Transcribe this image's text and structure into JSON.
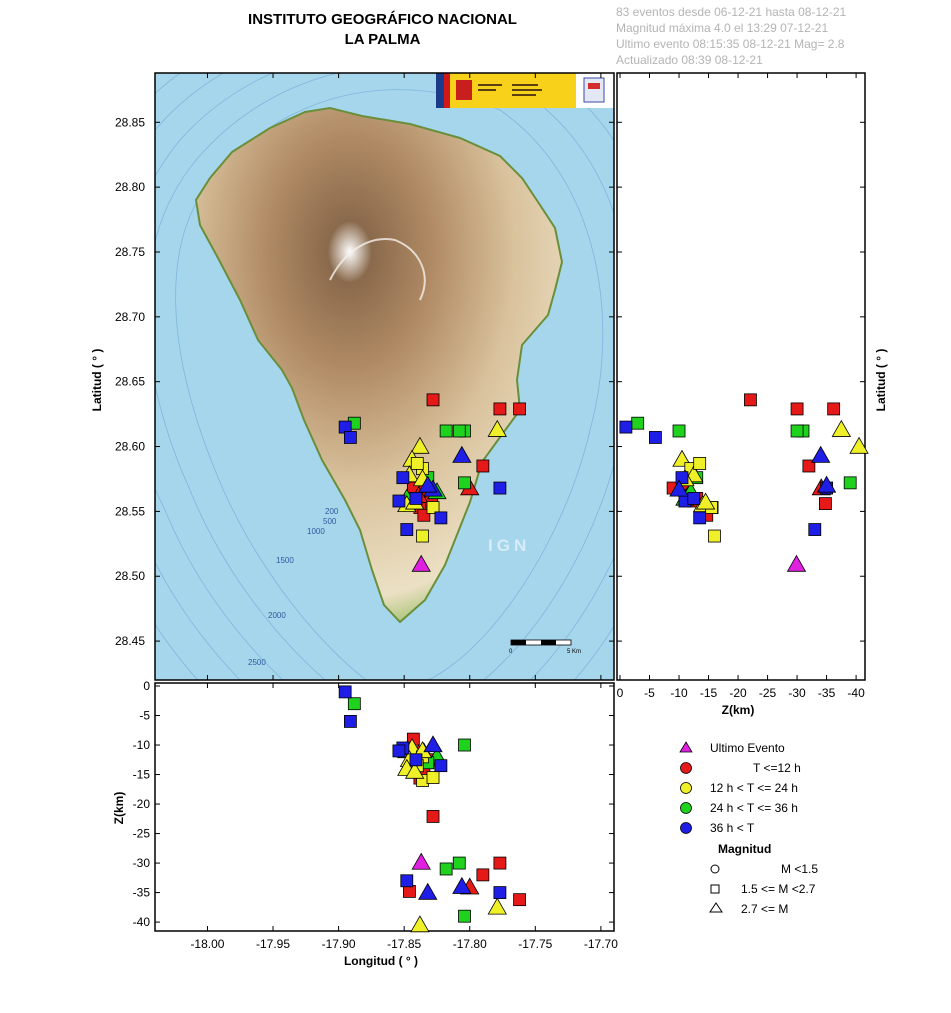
{
  "header": {
    "title": "INSTITUTO GEOGRÁFICO NACIONAL",
    "subtitle": "LA PALMA",
    "info_lines": [
      "83 eventos desde 06-12-21 hasta 08-12-21",
      "Magnitud máxima 4.0 el 13:29 07-12-21",
      "Ultimo evento   08:15:35 08-12-21  Mag= 2.8",
      "Actualizado  08:39  08-12-21"
    ]
  },
  "map": {
    "watermark": "IGN",
    "bathymetry_labels": [
      "200",
      "500",
      "1000",
      "1500",
      "2000",
      "2500"
    ],
    "scale_labels": [
      "0",
      "5 Km"
    ],
    "colors": {
      "sea": "#a6d6ec",
      "land_low": "#e8d8b4",
      "land_high": "#a07a58"
    }
  },
  "chart_data": {
    "type": "scatter",
    "axes": {
      "map_y_label": "Latitud ( ° )",
      "depth_x_label": "Z(km)",
      "depth_y_label": "Z(km)",
      "lon_label": "Longitud ( ° )",
      "lat_ticks": [
        "28.85",
        "28.80",
        "28.75",
        "28.70",
        "28.65",
        "28.60",
        "28.55",
        "28.50",
        "28.45"
      ],
      "lat_values": [
        28.85,
        28.8,
        28.75,
        28.7,
        28.65,
        28.6,
        28.55,
        28.5,
        28.45
      ],
      "lon_ticks": [
        "-18.00",
        "-17.95",
        "-17.90",
        "-17.85",
        "-17.80",
        "-17.75",
        "-17.70"
      ],
      "lon_values": [
        -18.0,
        -17.95,
        -17.9,
        -17.85,
        -17.8,
        -17.75,
        -17.7
      ],
      "depth_ticks_right": [
        "0",
        "-5",
        "-10",
        "-15",
        "-20",
        "-25",
        "-30",
        "-35",
        "-40"
      ],
      "depth_ticks_bottom": [
        "0",
        "-5",
        "-10",
        "-15",
        "-20",
        "-25",
        "-30",
        "-35",
        "-40"
      ],
      "depth_values": [
        0,
        5,
        10,
        15,
        20,
        25,
        30,
        35,
        40
      ],
      "lon_range": [
        -18.04,
        -17.69
      ],
      "lat_range": [
        28.42,
        28.888
      ],
      "depth_range": [
        0,
        41
      ]
    },
    "legend": {
      "items": [
        {
          "label": "Ultimo Evento",
          "color": "#e020e0",
          "shape": "triangle"
        },
        {
          "label": "T <=12 h",
          "color": "#e61919",
          "shape": "circle"
        },
        {
          "label": "12 h  < T <= 24 h",
          "color": "#f0f028",
          "shape": "circle"
        },
        {
          "label": "24 h  < T <= 36 h",
          "color": "#1ed21e",
          "shape": "circle"
        },
        {
          "label": "36 h <  T",
          "color": "#1e1ee6",
          "shape": "circle"
        }
      ],
      "magnitude_title": "Magnitud",
      "magnitude_items": [
        {
          "label": "M <1.5",
          "shape": "circle"
        },
        {
          "label": "1.5 <= M <2.7",
          "shape": "square"
        },
        {
          "label": "2.7 <= M",
          "shape": "triangle"
        }
      ]
    },
    "events": [
      {
        "lon": -17.837,
        "lat": 28.509,
        "z": 29.9,
        "color": "magenta",
        "shape": "triangle"
      },
      {
        "lon": -17.828,
        "lat": 28.636,
        "z": 22.1,
        "color": "red",
        "shape": "square"
      },
      {
        "lon": -17.777,
        "lat": 28.629,
        "z": 30.0,
        "color": "red",
        "shape": "square"
      },
      {
        "lon": -17.762,
        "lat": 28.629,
        "z": 36.2,
        "color": "red",
        "shape": "square"
      },
      {
        "lon": -17.79,
        "lat": 28.585,
        "z": 32.0,
        "color": "red",
        "shape": "square"
      },
      {
        "lon": -17.8,
        "lat": 28.568,
        "z": 34.1,
        "color": "red",
        "shape": "triangle"
      },
      {
        "lon": -17.835,
        "lat": 28.568,
        "z": 11.2,
        "color": "red",
        "shape": "triangle"
      },
      {
        "lon": -17.832,
        "lat": 28.56,
        "z": 13.0,
        "color": "red",
        "shape": "square"
      },
      {
        "lon": -17.838,
        "lat": 28.553,
        "z": 15.6,
        "color": "red",
        "shape": "square"
      },
      {
        "lon": -17.829,
        "lat": 28.558,
        "z": 12.5,
        "color": "red",
        "shape": "square"
      },
      {
        "lon": -17.843,
        "lat": 28.568,
        "z": 9.0,
        "color": "red",
        "shape": "square"
      },
      {
        "lon": -17.835,
        "lat": 28.547,
        "z": 14.7,
        "color": "red",
        "shape": "square"
      },
      {
        "lon": -17.839,
        "lat": 28.562,
        "z": 11.5,
        "color": "red",
        "shape": "triangle"
      },
      {
        "lon": -17.846,
        "lat": 28.556,
        "z": 34.8,
        "color": "red",
        "shape": "square"
      },
      {
        "lon": -17.818,
        "lat": 28.612,
        "z": 31.0,
        "color": "green",
        "shape": "square"
      },
      {
        "lon": -17.804,
        "lat": 28.612,
        "z": 10.0,
        "color": "green",
        "shape": "square"
      },
      {
        "lon": -17.808,
        "lat": 28.612,
        "z": 30.0,
        "color": "green",
        "shape": "square"
      },
      {
        "lon": -17.804,
        "lat": 28.572,
        "z": 39.0,
        "color": "green",
        "shape": "square"
      },
      {
        "lon": -17.888,
        "lat": 28.618,
        "z": 3.0,
        "color": "green",
        "shape": "square"
      },
      {
        "lon": -17.848,
        "lat": 28.56,
        "z": 11.0,
        "color": "green",
        "shape": "triangle"
      },
      {
        "lon": -17.825,
        "lat": 28.565,
        "z": 12.0,
        "color": "green",
        "shape": "triangle"
      },
      {
        "lon": -17.832,
        "lat": 28.576,
        "z": 13.0,
        "color": "green",
        "shape": "square"
      },
      {
        "lon": -17.779,
        "lat": 28.613,
        "z": 37.5,
        "color": "yellow",
        "shape": "triangle"
      },
      {
        "lon": -17.838,
        "lat": 28.6,
        "z": 40.5,
        "color": "yellow",
        "shape": "triangle"
      },
      {
        "lon": -17.844,
        "lat": 28.59,
        "z": 10.5,
        "color": "yellow",
        "shape": "triangle"
      },
      {
        "lon": -17.836,
        "lat": 28.583,
        "z": 12.0,
        "color": "yellow",
        "shape": "square"
      },
      {
        "lon": -17.846,
        "lat": 28.578,
        "z": 12.5,
        "color": "yellow",
        "shape": "triangle"
      },
      {
        "lon": -17.836,
        "lat": 28.575,
        "z": 11.0,
        "color": "yellow",
        "shape": "triangle"
      },
      {
        "lon": -17.848,
        "lat": 28.555,
        "z": 14.0,
        "color": "yellow",
        "shape": "triangle"
      },
      {
        "lon": -17.836,
        "lat": 28.531,
        "z": 16.0,
        "color": "yellow",
        "shape": "square"
      },
      {
        "lon": -17.828,
        "lat": 28.553,
        "z": 15.5,
        "color": "yellow",
        "shape": "square"
      },
      {
        "lon": -17.84,
        "lat": 28.587,
        "z": 13.5,
        "color": "yellow",
        "shape": "square"
      },
      {
        "lon": -17.842,
        "lat": 28.557,
        "z": 14.5,
        "color": "yellow",
        "shape": "triangle"
      },
      {
        "lon": -17.895,
        "lat": 28.615,
        "z": 1.0,
        "color": "blue",
        "shape": "square"
      },
      {
        "lon": -17.891,
        "lat": 28.607,
        "z": 6.0,
        "color": "blue",
        "shape": "square"
      },
      {
        "lon": -17.806,
        "lat": 28.593,
        "z": 34.0,
        "color": "blue",
        "shape": "triangle"
      },
      {
        "lon": -17.777,
        "lat": 28.568,
        "z": 35.0,
        "color": "blue",
        "shape": "square"
      },
      {
        "lon": -17.851,
        "lat": 28.576,
        "z": 10.5,
        "color": "blue",
        "shape": "square"
      },
      {
        "lon": -17.854,
        "lat": 28.558,
        "z": 11.0,
        "color": "blue",
        "shape": "square"
      },
      {
        "lon": -17.848,
        "lat": 28.536,
        "z": 33.0,
        "color": "blue",
        "shape": "square"
      },
      {
        "lon": -17.822,
        "lat": 28.545,
        "z": 13.5,
        "color": "blue",
        "shape": "square"
      },
      {
        "lon": -17.828,
        "lat": 28.567,
        "z": 10.0,
        "color": "blue",
        "shape": "triangle"
      },
      {
        "lon": -17.841,
        "lat": 28.56,
        "z": 12.5,
        "color": "blue",
        "shape": "square"
      },
      {
        "lon": -17.832,
        "lat": 28.57,
        "z": 35.0,
        "color": "blue",
        "shape": "triangle"
      }
    ]
  }
}
